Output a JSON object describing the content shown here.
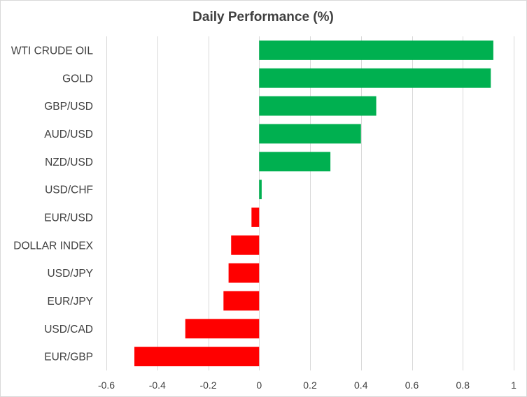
{
  "chart_data": {
    "type": "bar",
    "orientation": "horizontal",
    "title": "Daily Performance  (%)",
    "xlabel": "",
    "ylabel": "",
    "xlim": [
      -0.6,
      1
    ],
    "x_ticks": [
      -0.6,
      -0.4,
      -0.2,
      0,
      0.2,
      0.4,
      0.6,
      0.8,
      1
    ],
    "x_tick_labels": [
      "-0.6",
      "-0.4",
      "-0.2",
      "0",
      "0.2",
      "0.4",
      "0.6",
      "0.8",
      "1"
    ],
    "grid": "vertical",
    "legend": "none",
    "categories": [
      "WTI CRUDE OIL",
      "GOLD",
      "GBP/USD",
      "AUD/USD",
      "NZD/USD",
      "USD/CHF",
      "EUR/USD",
      "DOLLAR INDEX",
      "USD/JPY",
      "EUR/JPY",
      "USD/CAD",
      "EUR/GBP"
    ],
    "values": [
      0.92,
      0.91,
      0.46,
      0.4,
      0.28,
      0.01,
      -0.03,
      -0.11,
      -0.12,
      -0.14,
      -0.29,
      -0.49
    ],
    "colors": {
      "positive": "#00b050",
      "negative": "#ff0000",
      "grid": "#d9d9d9",
      "text": "#404040"
    }
  }
}
